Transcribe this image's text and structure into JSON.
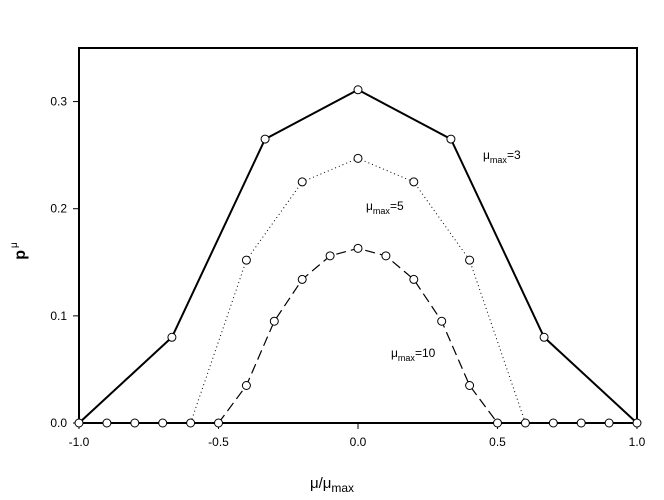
{
  "chart_data": {
    "type": "line",
    "xlabel": {
      "base": "μ/μ",
      "sub": "max"
    },
    "ylabel": {
      "base": "p",
      "sub": "μ"
    },
    "xlim": [
      -1.0,
      1.0
    ],
    "ylim": [
      0.0,
      0.35
    ],
    "x_ticks": [
      -1.0,
      -0.5,
      0.0,
      0.5,
      1.0
    ],
    "x_tick_labels": [
      "-1.0",
      "-0.5",
      "0.0",
      "0.5",
      "1.0"
    ],
    "y_ticks": [
      0.0,
      0.1,
      0.2,
      0.3
    ],
    "y_tick_labels": [
      "0.0",
      "0.1",
      "0.2",
      "0.3"
    ],
    "grid": false,
    "marker": "open-circle",
    "series": [
      {
        "name": "μmax=3",
        "line_style": "solid",
        "x": [
          -1.0,
          -0.667,
          -0.333,
          0.0,
          0.333,
          0.667,
          1.0
        ],
        "y": [
          0.0,
          0.08,
          0.265,
          0.311,
          0.265,
          0.08,
          0.0
        ]
      },
      {
        "name": "μmax=5",
        "line_style": "dotted",
        "x": [
          -0.6,
          -0.4,
          -0.2,
          0.0,
          0.2,
          0.4,
          0.6
        ],
        "y": [
          0.0,
          0.152,
          0.225,
          0.247,
          0.225,
          0.152,
          0.0
        ]
      },
      {
        "name": "μmax=10",
        "line_style": "dashed",
        "x": [
          -0.5,
          -0.4,
          -0.3,
          -0.2,
          -0.1,
          0.0,
          0.1,
          0.2,
          0.3,
          0.4,
          0.5
        ],
        "y": [
          0.0,
          0.035,
          0.095,
          0.134,
          0.156,
          0.163,
          0.156,
          0.134,
          0.095,
          0.035,
          0.0
        ]
      }
    ],
    "zero_markers_x": [
      -1.0,
      -0.9,
      -0.8,
      -0.7,
      -0.6,
      -0.5,
      0.5,
      0.6,
      0.7,
      0.8,
      0.9,
      1.0
    ],
    "annotations": [
      {
        "base": "μ",
        "sub": "max",
        "tail": "=3",
        "series": "μmax=3"
      },
      {
        "base": "μ",
        "sub": "max",
        "tail": "=5",
        "series": "μmax=5"
      },
      {
        "base": "μ",
        "sub": "max",
        "tail": "=10",
        "series": "μmax=10"
      }
    ]
  }
}
